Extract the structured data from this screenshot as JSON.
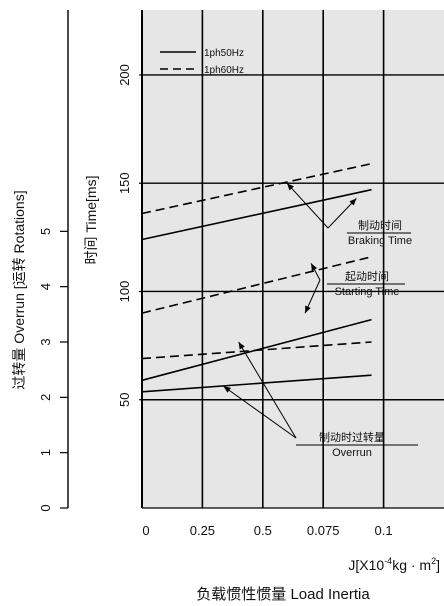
{
  "chart_data": {
    "type": "line",
    "x_axis": {
      "label_prefix": "J[X10",
      "label_exponent": "-4",
      "label_mid": "kg · m",
      "label_exponent2": "2",
      "label_suffix": "]",
      "title": "负载惯性惯量 Load Inertia",
      "ticks": [
        {
          "pos": 0,
          "label": "0"
        },
        {
          "pos": 1,
          "label": "0.25"
        },
        {
          "pos": 2,
          "label": "0.5"
        },
        {
          "pos": 3,
          "label": "0.075"
        },
        {
          "pos": 4,
          "label": "0.1"
        }
      ],
      "range": [
        0,
        5
      ]
    },
    "y_axis_time": {
      "title": "时间 Time[ms]",
      "ticks": [
        50,
        100,
        150,
        200
      ],
      "range": [
        0,
        230
      ]
    },
    "y_axis_overrun": {
      "title": "过转量 Overrun [运转 Rotations]",
      "ticks": [
        0,
        1,
        2,
        3,
        4,
        5
      ],
      "range": [
        0,
        9
      ]
    },
    "legend": [
      {
        "label": "1ph50Hz",
        "style": "solid"
      },
      {
        "label": "1ph60Hz",
        "style": "dashed"
      }
    ],
    "series": [
      {
        "name": "1ph50Hz",
        "group": "braking",
        "style": "solid",
        "points": [
          [
            0,
            124
          ],
          [
            3.8,
            147
          ]
        ]
      },
      {
        "name": "1ph60Hz",
        "group": "braking",
        "style": "dashed",
        "points": [
          [
            0,
            136
          ],
          [
            3.8,
            159
          ]
        ]
      },
      {
        "name": "1ph50Hz",
        "group": "starting",
        "style": "solid",
        "points": [
          [
            0,
            59
          ],
          [
            3.8,
            87
          ]
        ]
      },
      {
        "name": "1ph60Hz",
        "group": "starting",
        "style": "dashed",
        "points": [
          [
            0,
            90
          ],
          [
            3.8,
            116
          ]
        ]
      },
      {
        "name": "1ph50Hz",
        "group": "overrun",
        "style": "solid",
        "points": [
          [
            0,
            2.1
          ],
          [
            3.8,
            2.4
          ]
        ]
      },
      {
        "name": "1ph60Hz",
        "group": "overrun",
        "style": "dashed",
        "points": [
          [
            0,
            2.7
          ],
          [
            3.8,
            3.0
          ]
        ]
      }
    ],
    "annotations": [
      {
        "group": "braking",
        "cn": "制动时间",
        "en": "Braking Time"
      },
      {
        "group": "starting",
        "cn": "起动时间",
        "en": "Starting Time"
      },
      {
        "group": "overrun",
        "cn": "制动时过转量",
        "en": "Overrun"
      }
    ],
    "grid": true,
    "background": "#e6e6e6"
  }
}
